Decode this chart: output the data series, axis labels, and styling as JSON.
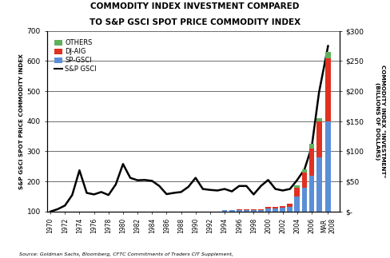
{
  "title_line1": "COMMODITY INDEX INVESTMENT COMPARED",
  "title_line2": "TO S&P GSCI SPOT PRICE COMMODITY INDEX",
  "ylabel_left": "S&P GSCI SPOT PRICE COMMODITY INDEX",
  "ylabel_right": "COMMODITY INDEX \"INVESTMENT\"\n(BILLIONS OF DOLLARS)",
  "source": "Source: Goldman Sachs, Bloomberg, CFTC Commitments of Traders CIT Supplement,",
  "line_years": [
    1970,
    1971,
    1972,
    1973,
    1974,
    1975,
    1976,
    1977,
    1978,
    1979,
    1980,
    1981,
    1982,
    1983,
    1984,
    1985,
    1986,
    1987,
    1988,
    1989,
    1990,
    1991,
    1992,
    1993,
    1994,
    1995,
    1996,
    1997,
    1998,
    1999,
    2000,
    2001,
    2002,
    2003,
    2004,
    2005,
    2006,
    2007,
    2008.25
  ],
  "line_values": [
    100,
    108,
    120,
    155,
    237,
    162,
    157,
    165,
    155,
    190,
    258,
    212,
    204,
    205,
    202,
    185,
    158,
    162,
    165,
    182,
    212,
    175,
    172,
    170,
    175,
    167,
    185,
    185,
    157,
    185,
    205,
    175,
    170,
    175,
    205,
    240,
    315,
    495,
    650
  ],
  "bar_year_nums": [
    1994,
    1995,
    1996,
    1997,
    1998,
    1999,
    2000,
    2001,
    2002,
    2003,
    2004,
    2005,
    2006,
    2007,
    2008.25
  ],
  "sp_gsci": [
    2,
    2,
    3,
    3,
    3,
    3,
    5,
    5,
    6,
    8,
    25,
    40,
    60,
    90,
    150
  ],
  "dj_aig": [
    0,
    1,
    1,
    1,
    1,
    1,
    3,
    3,
    3,
    5,
    15,
    25,
    45,
    60,
    105
  ],
  "others": [
    0,
    0,
    0,
    0,
    0,
    0,
    0,
    0,
    0,
    0,
    3,
    5,
    8,
    5,
    10
  ],
  "color_sp_gsci": "#5b8ed6",
  "color_dj_aig": "#e03020",
  "color_others": "#60b060",
  "color_line": "#000000",
  "ylim_left": [
    100,
    700
  ],
  "ylim_right": [
    0,
    300
  ],
  "yticks_left": [
    100,
    200,
    300,
    400,
    500,
    600,
    700
  ],
  "yticks_right": [
    0,
    50,
    100,
    150,
    200,
    250,
    300
  ],
  "ytick_right_labels": [
    "$-",
    "$50",
    "$100",
    "$150",
    "$200",
    "$250",
    "$300"
  ],
  "xlim": [
    1969.5,
    2009.8
  ],
  "xtick_positions": [
    1970,
    1972,
    1974,
    1976,
    1978,
    1980,
    1982,
    1984,
    1986,
    1988,
    1990,
    1992,
    1994,
    1996,
    1998,
    2000,
    2002,
    2004,
    2006,
    2008.25
  ],
  "xtick_labels": [
    "1970",
    "1972",
    "1974",
    "1976",
    "1978",
    "1980",
    "1982",
    "1984",
    "1986",
    "1988",
    "1990",
    "1992",
    "1994",
    "1996",
    "1998",
    "2000",
    "2002",
    "2004",
    "2006",
    "MAR\n2008"
  ],
  "background_color": "#ffffff",
  "bar_width": 0.75
}
